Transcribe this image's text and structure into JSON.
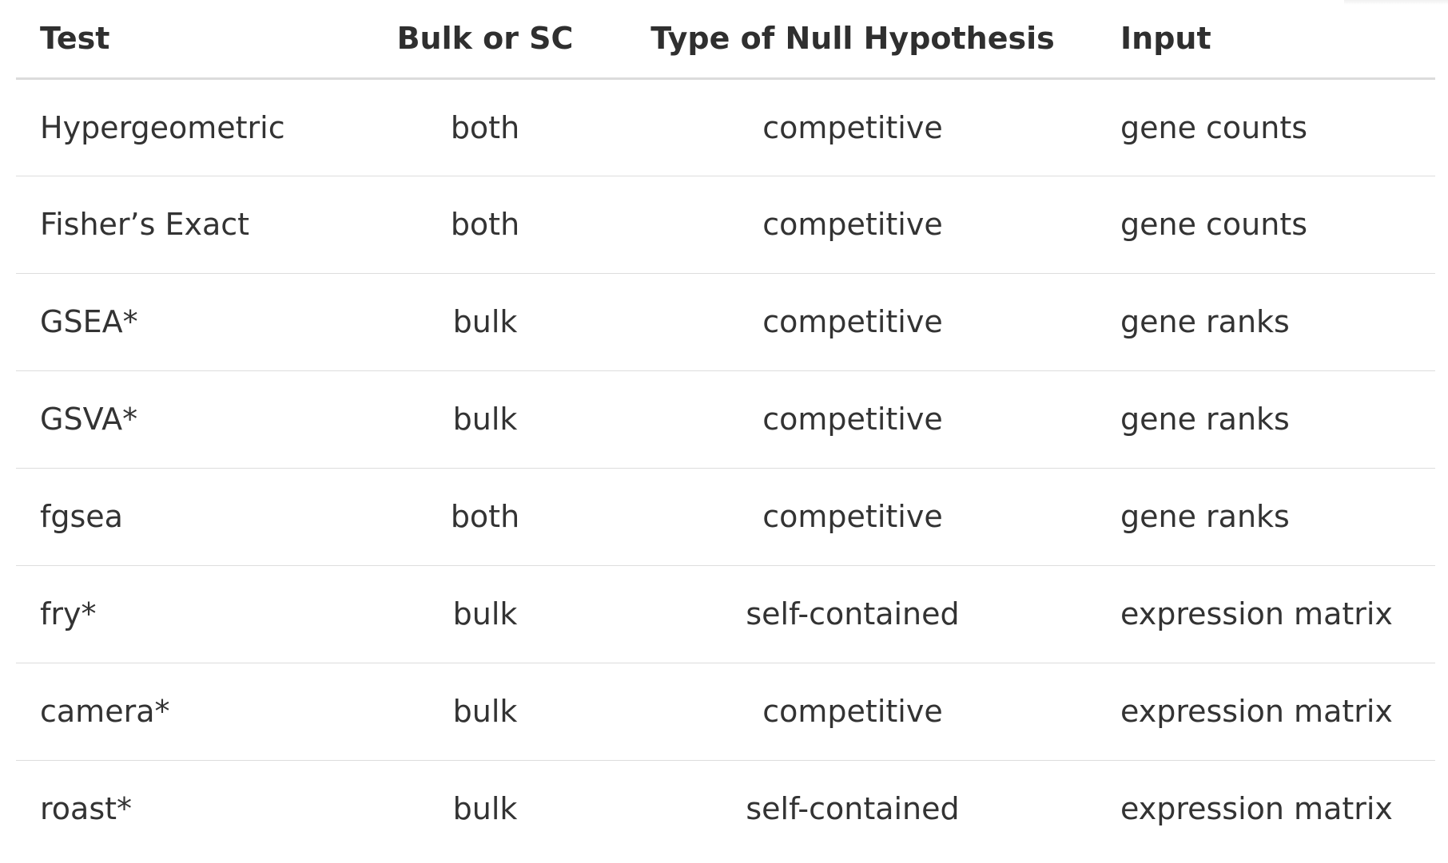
{
  "table": {
    "headers": [
      "Test",
      "Bulk or SC",
      "Type of Null Hypothesis",
      "Input"
    ],
    "rows": [
      [
        "Hypergeometric",
        "both",
        "competitive",
        "gene counts"
      ],
      [
        "Fisher’s Exact",
        "both",
        "competitive",
        "gene counts"
      ],
      [
        "GSEA*",
        "bulk",
        "competitive",
        "gene ranks"
      ],
      [
        "GSVA*",
        "bulk",
        "competitive",
        "gene ranks"
      ],
      [
        "fgsea",
        "both",
        "competitive",
        "gene ranks"
      ],
      [
        "fry*",
        "bulk",
        "self-contained",
        "expression matrix"
      ],
      [
        "camera*",
        "bulk",
        "competitive",
        "expression matrix"
      ],
      [
        "roast*",
        "bulk",
        "self-contained",
        "expression matrix"
      ]
    ]
  }
}
